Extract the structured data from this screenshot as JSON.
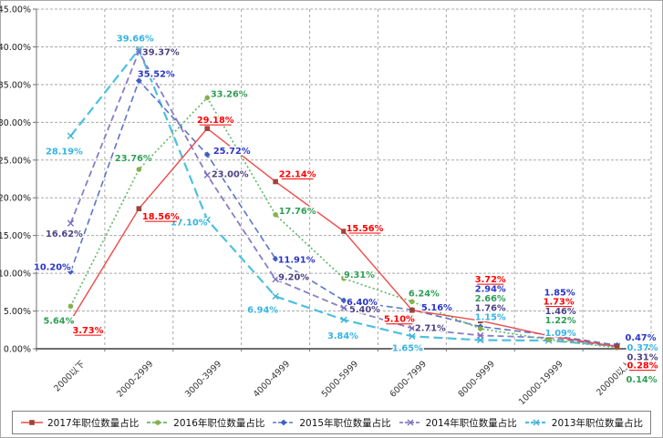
{
  "chart_data": {
    "type": "line",
    "title": "",
    "xlabel": "",
    "ylabel": "",
    "categories": [
      "2000以下",
      "2000-2999",
      "3000-3999",
      "4000-4999",
      "5000-5999",
      "6000-7999",
      "8000-9999",
      "10000-19999",
      "20000以上"
    ],
    "series": [
      {
        "name": "2017年职位数量占比",
        "values": [
          3.73,
          18.56,
          29.18,
          22.14,
          15.56,
          5.1,
          3.72,
          1.73,
          0.28
        ],
        "line_color": "#f04a48",
        "marker_color": "#9e4338",
        "label_color": "#ff0000",
        "marker": "square",
        "line_style": "solid",
        "label_underline": true
      },
      {
        "name": "2016年职位数量占比",
        "values": [
          5.64,
          23.76,
          33.26,
          17.76,
          9.31,
          6.24,
          2.66,
          1.22,
          0.14
        ],
        "line_color": "#63bb6a",
        "marker_color": "#86b04c",
        "label_color": "#2e9e55",
        "marker": "circle",
        "line_style": "dotted",
        "label_underline": false
      },
      {
        "name": "2015年职位数量占比",
        "values": [
          10.2,
          35.52,
          25.72,
          11.91,
          6.4,
          5.16,
          2.94,
          1.85,
          0.47
        ],
        "line_color": "#5b76c8",
        "marker_color": "#3f5fc0",
        "label_color": "#2a35c8",
        "marker": "diamond",
        "line_style": "dashed",
        "label_underline": false
      },
      {
        "name": "2014年职位数量占比",
        "values": [
          16.62,
          39.37,
          23.0,
          9.2,
          5.4,
          2.71,
          1.76,
          1.46,
          0.31
        ],
        "line_color": "#8a7cc8",
        "marker_color": "#7a6cc0",
        "label_color": "#4c4282",
        "marker": "x",
        "line_style": "dashed",
        "label_underline": false
      },
      {
        "name": "2013年职位数量占比",
        "values": [
          28.19,
          39.66,
          17.1,
          6.94,
          3.84,
          1.65,
          1.15,
          1.09,
          0.37
        ],
        "line_color": "#4cc0e0",
        "marker_color": "#3fb3d6",
        "label_color": "#35b3e3",
        "marker": "x",
        "line_style": "long-dash",
        "label_underline": false
      }
    ],
    "ylim": [
      0,
      45
    ],
    "ytick_step": 5,
    "ytick_labels": [
      "0.00%",
      "5.00%",
      "10.00%",
      "15.00%",
      "20.00%",
      "25.00%",
      "30.00%",
      "35.00%",
      "40.00%",
      "45.00%"
    ],
    "value_label_format": "0.00%",
    "grid": true,
    "legend_position": "bottom"
  }
}
